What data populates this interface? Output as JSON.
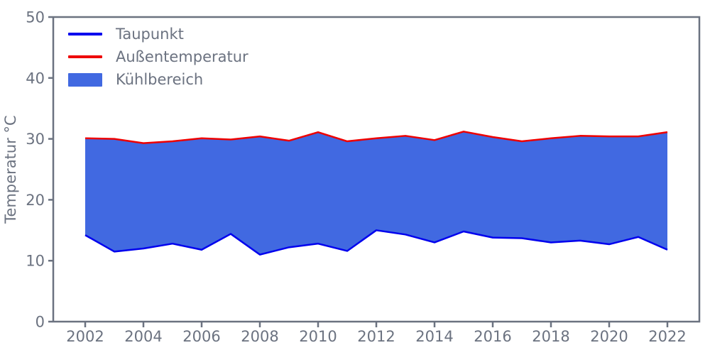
{
  "figure": {
    "background": "#ffffff",
    "axis_color": "#6b7280",
    "text_color": "#6b7280"
  },
  "legend": {
    "position": "upper left",
    "items": [
      {
        "label": "Taupunkt",
        "type": "line",
        "color": "#0000ee"
      },
      {
        "label": "Außentemperatur",
        "type": "line",
        "color": "#ee0000"
      },
      {
        "label": "Kühlbereich",
        "type": "patch",
        "color": "#4169e1"
      }
    ]
  },
  "chart_data": {
    "type": "area",
    "title": "",
    "xlabel": "",
    "ylabel": "Temperatur °C",
    "grid": false,
    "legend_position": "upper left",
    "ylim": [
      0,
      50
    ],
    "yticks": [
      0,
      10,
      20,
      30,
      40,
      50
    ],
    "xticks": [
      2002,
      2004,
      2006,
      2008,
      2010,
      2012,
      2014,
      2016,
      2018,
      2020,
      2022
    ],
    "x": [
      2002,
      2003,
      2004,
      2005,
      2006,
      2007,
      2008,
      2009,
      2010,
      2011,
      2012,
      2013,
      2014,
      2015,
      2016,
      2017,
      2018,
      2019,
      2020,
      2021,
      2022
    ],
    "series": [
      {
        "name": "Taupunkt",
        "color": "#0000ee",
        "values": [
          14.2,
          11.5,
          12.0,
          12.8,
          11.8,
          14.4,
          11.0,
          12.2,
          12.8,
          11.6,
          15.0,
          14.3,
          13.0,
          14.8,
          13.8,
          13.7,
          13.0,
          13.3,
          12.7,
          13.9,
          11.8
        ]
      },
      {
        "name": "Außentemperatur",
        "color": "#ee0000",
        "values": [
          30.1,
          30.0,
          29.3,
          29.6,
          30.1,
          29.9,
          30.4,
          29.7,
          31.1,
          29.6,
          30.1,
          30.5,
          29.8,
          31.2,
          30.3,
          29.6,
          30.1,
          30.5,
          30.4,
          30.4,
          31.1
        ]
      }
    ],
    "fill_between": {
      "name": "Kühlbereich",
      "color": "#4169e1",
      "between": [
        "Taupunkt",
        "Außentemperatur"
      ]
    }
  }
}
